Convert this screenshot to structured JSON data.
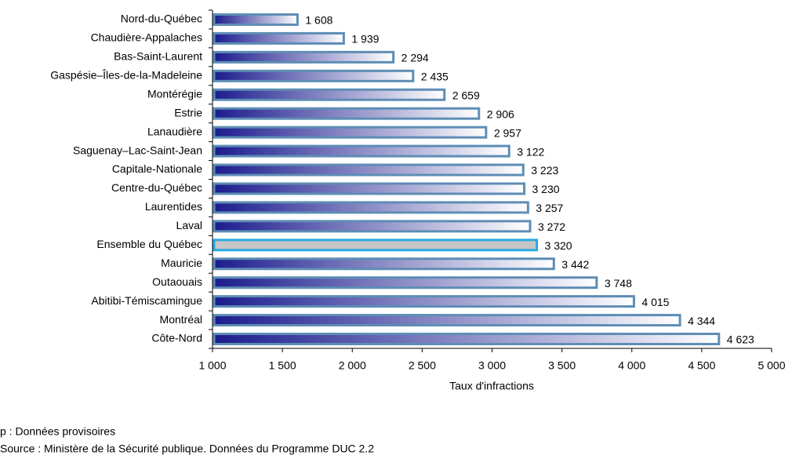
{
  "chart_data": {
    "type": "hbar",
    "xlabel": "Taux d'infractions",
    "categories": [
      "Nord-du-Québec",
      "Chaudière-Appalaches",
      "Bas-Saint-Laurent",
      "Gaspésie–Îles-de-la-Madeleine",
      "Montérégie",
      "Estrie",
      "Lanaudière",
      "Saguenay–Lac-Saint-Jean",
      "Capitale-Nationale",
      "Centre-du-Québec",
      "Laurentides",
      "Laval",
      "Ensemble du Québec",
      "Mauricie",
      "Outaouais",
      "Abitibi-Témiscamingue",
      "Montréal",
      "Côte-Nord"
    ],
    "values": [
      1608,
      1939,
      2294,
      2435,
      2659,
      2906,
      2957,
      3122,
      3223,
      3230,
      3257,
      3272,
      3320,
      3442,
      3748,
      4015,
      4344,
      4623
    ],
    "value_labels": [
      "1 608",
      "1 939",
      "2 294",
      "2 435",
      "2 659",
      "2 906",
      "2 957",
      "3 122",
      "3 223",
      "3 230",
      "3 257",
      "3 272",
      "3 320",
      "3 442",
      "3 748",
      "4 015",
      "4 344",
      "4 623"
    ],
    "xlim": [
      1000,
      5000
    ],
    "xticks": [
      {
        "value": 1000,
        "label": "1 000"
      },
      {
        "value": 1500,
        "label": "1 500"
      },
      {
        "value": 2000,
        "label": "2 000"
      },
      {
        "value": 2500,
        "label": "2 500"
      },
      {
        "value": 3000,
        "label": "3 000"
      },
      {
        "value": 3500,
        "label": "3 500"
      },
      {
        "value": 4000,
        "label": "4 000"
      },
      {
        "value": 4500,
        "label": "4 500"
      },
      {
        "value": 5000,
        "label": "5 000"
      }
    ],
    "gradient": [
      "#1c1c8e",
      "#ffffff"
    ],
    "border_color": "#5e8db5",
    "highlight": {
      "category": "Ensemble du Québec",
      "fill": "#c6c6c6",
      "border": "#2aaae2"
    },
    "footnotes": [
      "p : Données provisoires",
      "Source : Ministère de la Sécurité publique. Données du Programme DUC 2.2"
    ]
  }
}
